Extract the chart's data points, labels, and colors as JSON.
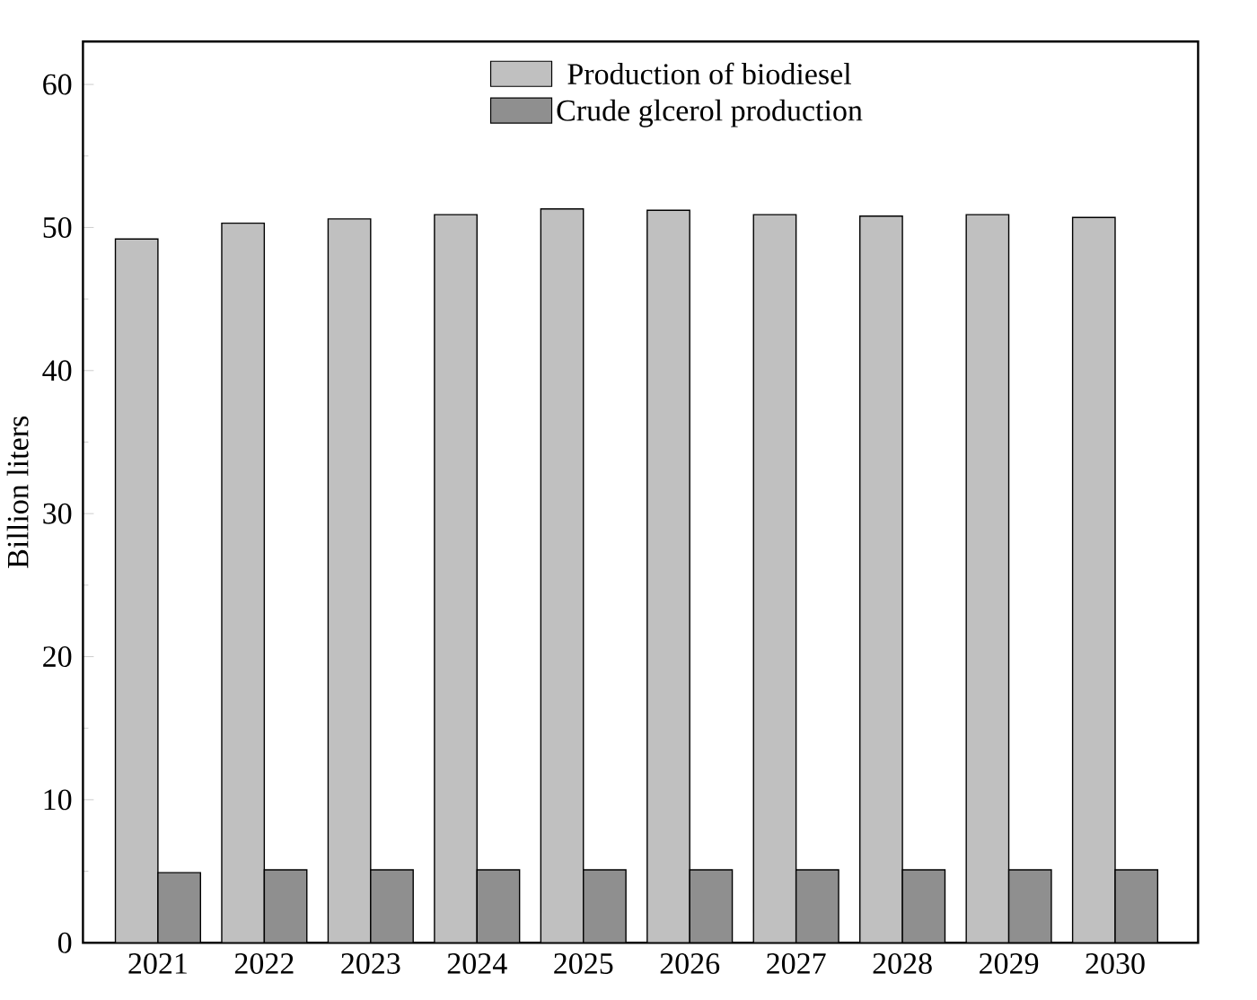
{
  "chart_data": {
    "type": "bar",
    "ylabel": "Billion liters",
    "categories": [
      "2021",
      "2022",
      "2023",
      "2024",
      "2025",
      "2026",
      "2027",
      "2028",
      "2029",
      "2030"
    ],
    "series": [
      {
        "name": "Production of biodiesel",
        "color": "#c0c0c0",
        "values": [
          49.2,
          50.3,
          50.6,
          50.9,
          51.3,
          51.2,
          50.9,
          50.8,
          50.9,
          50.7
        ]
      },
      {
        "name": "Crude glcerol production",
        "color": "#8f8f8f",
        "values": [
          4.9,
          5.1,
          5.1,
          5.1,
          5.1,
          5.1,
          5.1,
          5.1,
          5.1,
          5.1
        ]
      }
    ],
    "ylim": [
      0,
      63
    ],
    "yticks": [
      0,
      10,
      20,
      30,
      40,
      50,
      60
    ],
    "legend": "top right"
  }
}
